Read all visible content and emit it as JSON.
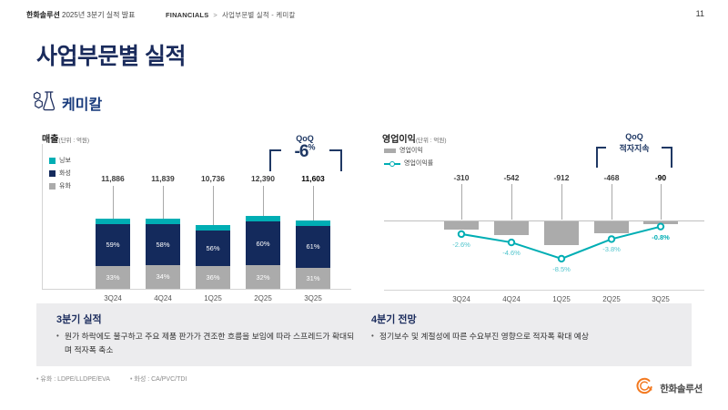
{
  "page": {
    "number": "11",
    "header_brand": "한화솔루션",
    "header_rest": " 2025년 3분기 실적 발표",
    "breadcrumb_root": "FINANCIALS",
    "breadcrumb_sep": ">",
    "breadcrumb_path": "사업부문별 실적 - 케미칼",
    "title": "사업부문별 실적",
    "section": "케미칼"
  },
  "colors": {
    "navy": "#142A5C",
    "teal": "#00AEB4",
    "gray_bar": "#ABABAB",
    "title_navy": "#1A2B5C",
    "qoq_navy": "#1F3864",
    "light_teal": "#4EC4CC",
    "orange": "#F37920"
  },
  "chart_data": [
    {
      "type": "bar",
      "title": "매출",
      "unit_label": "(단위 : 억원)",
      "categories": [
        "3Q24",
        "4Q24",
        "1Q25",
        "2Q25",
        "3Q25"
      ],
      "totals": [
        11886,
        11839,
        10736,
        12390,
        11603
      ],
      "total_labels": [
        "11,886",
        "11,839",
        "10,736",
        "12,390",
        "11,603"
      ],
      "series": [
        {
          "name": "유화",
          "color": "gray",
          "pct": [
            33,
            34,
            36,
            32,
            31
          ],
          "pct_labels": [
            "33%",
            "34%",
            "36%",
            "32%",
            "31%"
          ]
        },
        {
          "name": "화성",
          "color": "navy",
          "pct": [
            59,
            58,
            56,
            60,
            61
          ],
          "pct_labels": [
            "59%",
            "58%",
            "56%",
            "60%",
            "61%"
          ]
        },
        {
          "name": "닝보",
          "color": "teal",
          "pct": [
            8,
            8,
            8,
            8,
            8
          ],
          "pct_labels": [
            "",
            "",
            "",
            "",
            ""
          ]
        }
      ],
      "legend": [
        {
          "label": "닝보",
          "color": "teal"
        },
        {
          "label": "화성",
          "color": "navy"
        },
        {
          "label": "유화",
          "color": "gray"
        }
      ],
      "qoq": {
        "label": "QoQ",
        "value": "-6",
        "suffix": "%"
      },
      "ylabel": "",
      "xlabel": "",
      "grid": false
    },
    {
      "type": "bar-line",
      "title": "영업이익",
      "unit_label": "(단위 : 억원)",
      "categories": [
        "3Q24",
        "4Q24",
        "1Q25",
        "2Q25",
        "3Q25"
      ],
      "bar_series": {
        "name": "영업이익",
        "values": [
          -310,
          -542,
          -912,
          -468,
          -90
        ],
        "labels": [
          "-310",
          "-542",
          "-912",
          "-468",
          "-90"
        ]
      },
      "line_series": {
        "name": "영업이익률",
        "values": [
          -2.6,
          -4.6,
          -8.5,
          -3.8,
          -0.8
        ],
        "labels": [
          "-2.6%",
          "-4.6%",
          "-8.5%",
          "-3.8%",
          "-0.8%"
        ]
      },
      "qoq": {
        "label": "QoQ",
        "value": "적자지속"
      },
      "legend_position": "top-left",
      "grid": false
    }
  ],
  "commentary": {
    "left": {
      "title": "3분기 실적",
      "bullets": [
        "원가 하락에도 불구하고 주요 제품 판가가 견조한 흐름을 보임에 따라 스프레드가 확대되며 적자폭 축소"
      ]
    },
    "right": {
      "title": "4분기 전망",
      "bullets": [
        "정기보수 및 계절성에 따른 수요부진 영향으로 적자폭 확대 예상"
      ]
    }
  },
  "footnotes": [
    "유화 : LDPE/LLDPE/EVA",
    "화성 : CA/PVC/TDI"
  ],
  "logo_text": "한화솔루션"
}
